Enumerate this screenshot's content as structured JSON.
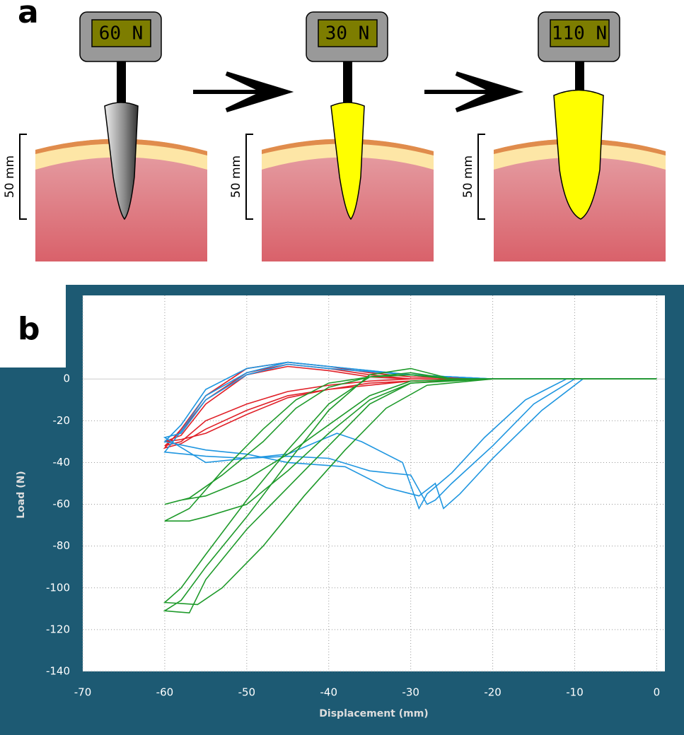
{
  "panel_a": {
    "label": "a",
    "readouts": [
      "60 N",
      "30 N",
      "110 N"
    ],
    "scale_labels": [
      "50 mm",
      "50 mm",
      "50 mm"
    ]
  },
  "chart_data": {
    "type": "line",
    "label": "b",
    "xlabel": "Displacement (mm)",
    "ylabel": "Load (N)",
    "xlim": [
      -70,
      1
    ],
    "ylim": [
      -140,
      40
    ],
    "xticks": [
      -70,
      -60,
      -50,
      -40,
      -30,
      -20,
      -10,
      0
    ],
    "yticks": [
      -140,
      -120,
      -100,
      -80,
      -60,
      -40,
      -20,
      0
    ],
    "grid": true,
    "series": [
      {
        "color": "#e02028",
        "x": [
          0,
          -20,
          -30,
          -35,
          -40,
          -45,
          -50,
          -55,
          -58,
          -60,
          -58,
          -55,
          -50,
          -45,
          -40,
          -35,
          -30,
          -20,
          0
        ],
        "values": [
          0,
          0,
          0,
          2,
          5,
          7,
          3,
          -10,
          -25,
          -32,
          -30,
          -20,
          -12,
          -6,
          -3,
          -1,
          0,
          0,
          0
        ]
      },
      {
        "color": "#e02028",
        "x": [
          0,
          -20,
          -30,
          -35,
          -40,
          -45,
          -50,
          -55,
          -58,
          -60,
          -58,
          -55,
          -50,
          -45,
          -40,
          -35,
          -30,
          -20,
          0
        ],
        "values": [
          0,
          0,
          1,
          3,
          6,
          8,
          5,
          -8,
          -24,
          -33,
          -31,
          -24,
          -15,
          -8,
          -5,
          -2,
          -1,
          0,
          0
        ]
      },
      {
        "color": "#e02028",
        "x": [
          0,
          -20,
          -30,
          -35,
          -40,
          -45,
          -50,
          -55,
          -58,
          -60,
          -58,
          -55,
          -50,
          -45,
          -40,
          -35,
          -30,
          -20,
          0
        ],
        "values": [
          0,
          0,
          0,
          1,
          4,
          6,
          2,
          -12,
          -27,
          -30,
          -29,
          -26,
          -17,
          -9,
          -5,
          -3,
          -1,
          0,
          0
        ]
      },
      {
        "color": "#1f96e0",
        "x": [
          0,
          -10,
          -15,
          -20,
          -25,
          -27,
          -28,
          -30,
          -35,
          -40,
          -45,
          -50,
          -55,
          -60,
          -58,
          -55,
          -50,
          -45,
          -40,
          -30,
          -20,
          0
        ],
        "values": [
          0,
          0,
          -12,
          -32,
          -50,
          -58,
          -60,
          -46,
          -44,
          -38,
          -37,
          -38,
          -37,
          -35,
          -25,
          -8,
          3,
          8,
          6,
          2,
          0,
          0
        ]
      },
      {
        "color": "#1f96e0",
        "x": [
          0,
          -9,
          -14,
          -20,
          -24,
          -26,
          -27,
          -29,
          -33,
          -38,
          -45,
          -50,
          -55,
          -60,
          -58,
          -55,
          -50,
          -45,
          -40,
          -30,
          -20,
          0
        ],
        "values": [
          0,
          0,
          -15,
          -38,
          -55,
          -62,
          -50,
          -56,
          -52,
          -42,
          -40,
          -36,
          -34,
          -30,
          -22,
          -5,
          5,
          8,
          6,
          2,
          0,
          0
        ]
      },
      {
        "color": "#1f96e0",
        "x": [
          0,
          -11,
          -16,
          -21,
          -25,
          -28,
          -29,
          -31,
          -36,
          -39,
          -45,
          -50,
          -55,
          -60,
          -58,
          -55,
          -50,
          -45,
          -40,
          -30,
          -20,
          0
        ],
        "values": [
          0,
          0,
          -10,
          -28,
          -45,
          -55,
          -62,
          -40,
          -30,
          -26,
          -36,
          -38,
          -40,
          -28,
          -26,
          -10,
          2,
          7,
          5,
          2,
          0,
          0
        ]
      },
      {
        "color": "#1e9a2a",
        "x": [
          0,
          -20,
          -30,
          -35,
          -40,
          -45,
          -50,
          -55,
          -57,
          -60,
          -58,
          -55,
          -50,
          -45,
          -40,
          -35,
          -30,
          -25,
          0
        ],
        "values": [
          0,
          0,
          -2,
          -12,
          -32,
          -52,
          -72,
          -96,
          -112,
          -111,
          -106,
          -90,
          -66,
          -40,
          -15,
          2,
          5,
          0,
          0
        ]
      },
      {
        "color": "#1e9a2a",
        "x": [
          0,
          -20,
          -28,
          -33,
          -38,
          -43,
          -48,
          -53,
          -56,
          -60,
          -58,
          -55,
          -50,
          -45,
          -40,
          -35,
          -30,
          -25,
          0
        ],
        "values": [
          0,
          0,
          -3,
          -14,
          -34,
          -56,
          -80,
          -100,
          -108,
          -107,
          -100,
          -84,
          -58,
          -34,
          -12,
          1,
          3,
          0,
          0
        ]
      },
      {
        "color": "#1e9a2a",
        "x": [
          0,
          -22,
          -30,
          -35,
          -40,
          -45,
          -50,
          -55,
          -58,
          -60,
          -57,
          -53,
          -48,
          -44,
          -40,
          -35,
          -30,
          -25,
          0
        ],
        "values": [
          0,
          0,
          -1,
          -8,
          -22,
          -36,
          -48,
          -56,
          -58,
          -60,
          -57,
          -46,
          -30,
          -14,
          -4,
          1,
          2,
          0,
          0
        ]
      },
      {
        "color": "#1e9a2a",
        "x": [
          0,
          -22,
          -30,
          -35,
          -40,
          -45,
          -50,
          -55,
          -57,
          -60,
          -57,
          -53,
          -48,
          -44,
          -40,
          -35,
          -30,
          -25,
          0
        ],
        "values": [
          0,
          0,
          -2,
          -10,
          -26,
          -44,
          -60,
          -66,
          -68,
          -68,
          -62,
          -44,
          -24,
          -10,
          -2,
          1,
          2,
          0,
          0
        ]
      }
    ]
  }
}
